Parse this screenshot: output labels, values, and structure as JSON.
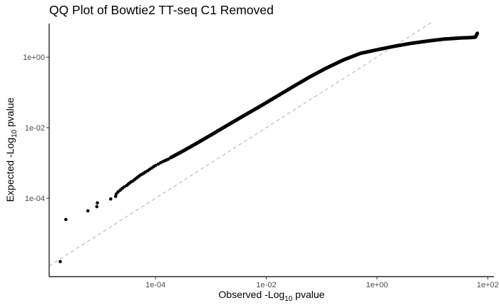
{
  "chart_data": {
    "type": "scatter",
    "title": "QQ Plot of Bowtie2 TT-seq C1 Removed",
    "xlabel": {
      "prefix": "Observed -Log",
      "sub": "10",
      "suffix": " pvalue"
    },
    "ylabel": {
      "prefix": "Expected -Log",
      "sub": "10",
      "suffix": " pvalue"
    },
    "x_scale": "log10",
    "y_scale": "log10",
    "xlim": [
      1.2e-06,
      130
    ],
    "ylim": [
      6e-07,
      9
    ],
    "x_ticks": [
      {
        "value": 0.0001,
        "label": "1e-04"
      },
      {
        "value": 0.01,
        "label": "1e-02"
      },
      {
        "value": 1,
        "label": "1e+00"
      },
      {
        "value": 100,
        "label": "1e+02"
      }
    ],
    "y_ticks": [
      {
        "value": 0.0001,
        "label": "1e-04"
      },
      {
        "value": 0.01,
        "label": "1e-02"
      },
      {
        "value": 1,
        "label": "1e+00"
      }
    ],
    "reference_line": {
      "style": "dashed",
      "color": "#bdbdbd",
      "x": [
        1.2e-06,
        10
      ],
      "y": [
        1.2e-06,
        10
      ]
    },
    "point_color": "#000000",
    "grid": false,
    "legend": "none",
    "series": [
      {
        "points": [
          [
            1.9e-06,
            1.6e-06
          ],
          [
            2.4e-06,
            2.5e-05
          ],
          [
            6e-06,
            4.4e-05
          ],
          [
            8.7e-06,
            5.8e-05
          ],
          [
            8.9e-06,
            7.4e-05
          ],
          [
            1.55e-05,
            9.55e-05
          ],
          [
            1.9e-05,
            0.000113
          ],
          [
            1.95e-05,
            0.000132
          ],
          [
            2.1e-05,
            0.000151
          ],
          [
            2.3e-05,
            0.00017
          ],
          [
            2.5e-05,
            0.00019
          ],
          [
            2.7e-05,
            0.00021
          ],
          [
            3e-05,
            0.00023
          ],
          [
            3.2e-05,
            0.00025
          ],
          [
            3.4e-05,
            0.00027
          ],
          [
            3.6e-05,
            0.00029
          ],
          [
            3.9e-05,
            0.00031
          ],
          [
            4.2e-05,
            0.00034
          ],
          [
            4.5e-05,
            0.00037
          ],
          [
            4.8e-05,
            0.0004
          ],
          [
            5.1e-05,
            0.00043
          ],
          [
            5.4e-05,
            0.00046
          ],
          [
            5.8e-05,
            0.00049
          ],
          [
            6.2e-05,
            0.00052
          ],
          [
            6.6e-05,
            0.00056
          ],
          [
            7.2e-05,
            0.0006
          ],
          [
            7.8e-05,
            0.00066
          ],
          [
            8.5e-05,
            0.00072
          ],
          [
            9.2e-05,
            0.00078
          ],
          [
            0.0001,
            0.00085
          ],
          [
            0.000112,
            0.00093
          ],
          [
            0.000124,
            0.00102
          ],
          [
            0.000135,
            0.00109
          ],
          [
            0.000146,
            0.00115
          ],
          [
            0.000158,
            0.00122
          ],
          [
            0.000172,
            0.00129
          ]
        ],
        "dense_band": {
          "x": [
            0.00019,
            0.0003,
            0.0005,
            0.001,
            0.002,
            0.004,
            0.008,
            0.015,
            0.03,
            0.06,
            0.12,
            0.25,
            0.5,
            1,
            2,
            4,
            8,
            16,
            32,
            50,
            60
          ],
          "y": [
            0.00143,
            0.0021,
            0.0033,
            0.0062,
            0.0118,
            0.0223,
            0.0417,
            0.0751,
            0.1435,
            0.271,
            0.485,
            0.84,
            1.28,
            1.62,
            2.02,
            2.45,
            2.85,
            3.25,
            3.5,
            3.6,
            3.7
          ]
        },
        "tail": [
          [
            61,
            3.85
          ],
          [
            62,
            4.1
          ],
          [
            63,
            4.35
          ],
          [
            64,
            4.55
          ],
          [
            65,
            4.75
          ]
        ]
      }
    ]
  }
}
